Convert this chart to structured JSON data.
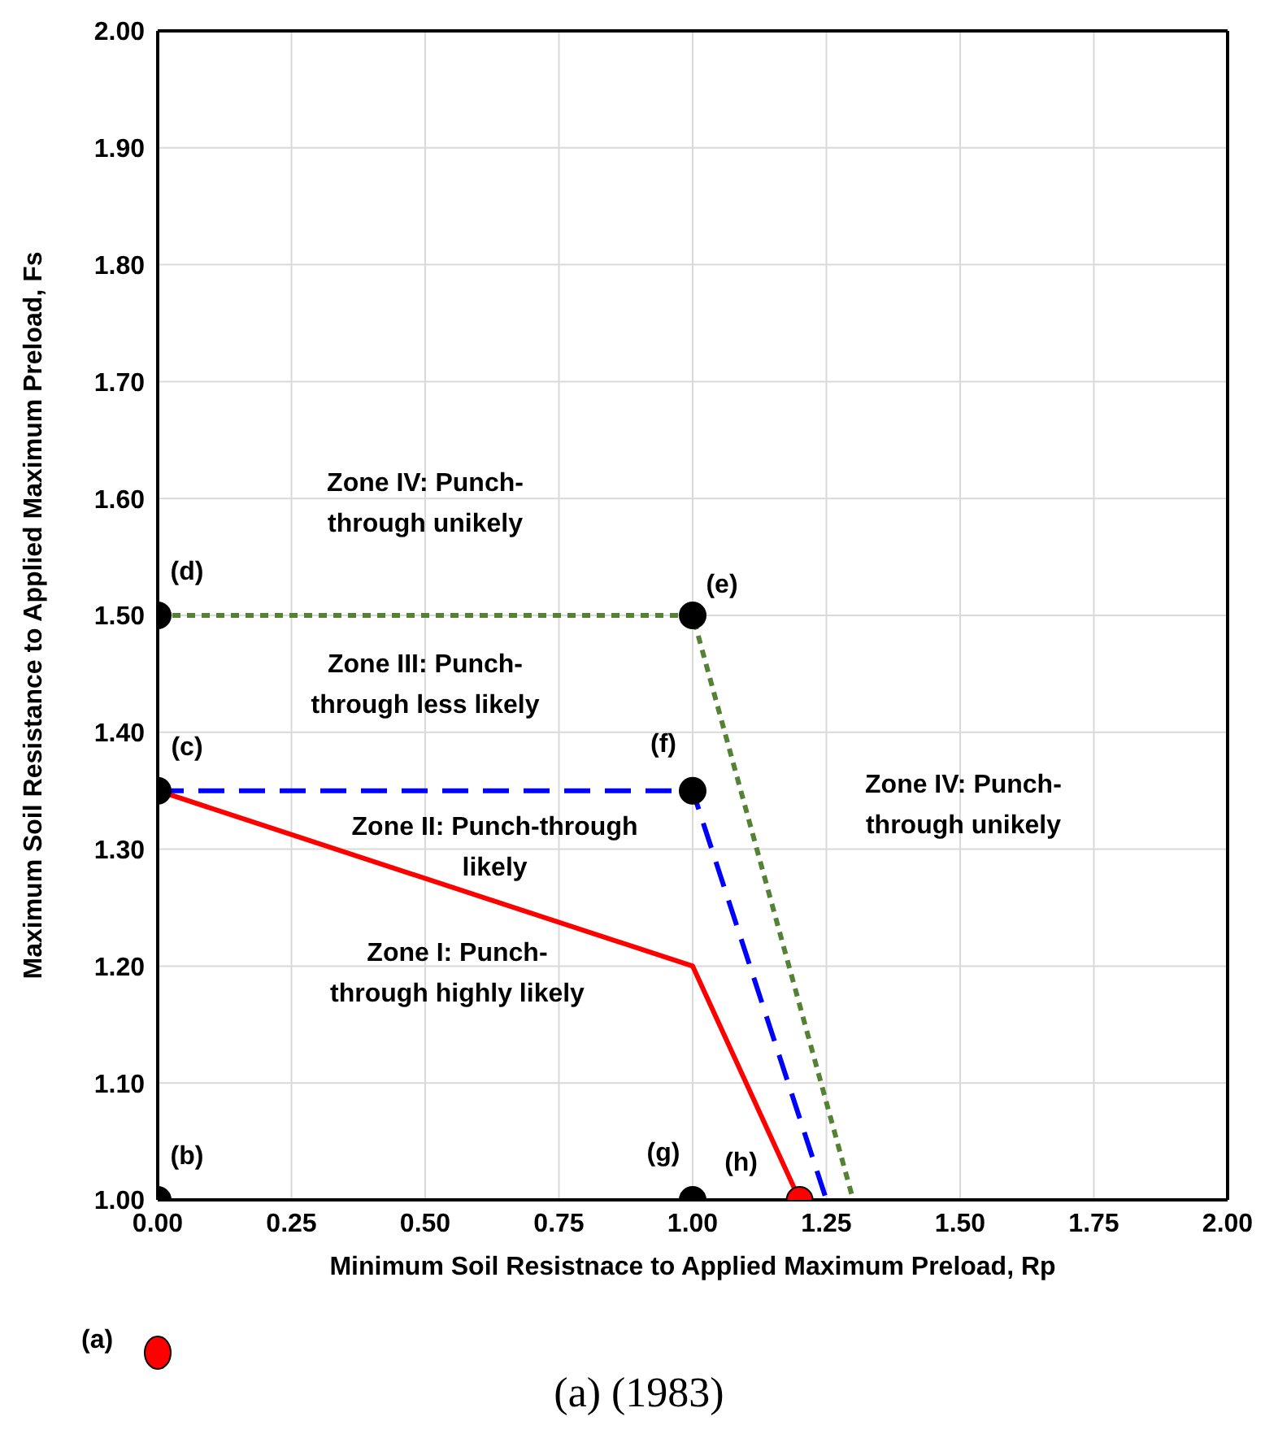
{
  "chart_data": {
    "type": "line",
    "xlabel": "Minimum Soil Resistnace to Applied Maximum Preload, Rp",
    "ylabel": "Maximum Soil Resistance to Applied Maximum Preload, Fs",
    "xlim": [
      0,
      2
    ],
    "ylim": [
      1,
      2
    ],
    "xticks": [
      {
        "value": 0,
        "label": "0.00"
      },
      {
        "value": 0.25,
        "label": "0.25"
      },
      {
        "value": 0.5,
        "label": "0.50"
      },
      {
        "value": 0.75,
        "label": "0.75"
      },
      {
        "value": 1,
        "label": "1.00"
      },
      {
        "value": 1.25,
        "label": "1.25"
      },
      {
        "value": 1.5,
        "label": "1.50"
      },
      {
        "value": 1.75,
        "label": "1.75"
      },
      {
        "value": 2,
        "label": "2.00"
      }
    ],
    "yticks": [
      {
        "value": 1,
        "label": "1.00"
      },
      {
        "value": 1.1,
        "label": "1.10"
      },
      {
        "value": 1.2,
        "label": "1.20"
      },
      {
        "value": 1.3,
        "label": "1.30"
      },
      {
        "value": 1.4,
        "label": "1.40"
      },
      {
        "value": 1.5,
        "label": "1.50"
      },
      {
        "value": 1.6,
        "label": "1.60"
      },
      {
        "value": 1.7,
        "label": "1.70"
      },
      {
        "value": 1.8,
        "label": "1.80"
      },
      {
        "value": 1.9,
        "label": "1.90"
      },
      {
        "value": 2,
        "label": "2.00"
      }
    ],
    "grid": true,
    "series": [
      {
        "color": "#ff0000",
        "line_style": "solid",
        "marker": "none",
        "x": [
          0,
          1,
          1.2
        ],
        "values": [
          1.35,
          1.2,
          1.0
        ]
      },
      {
        "color": "#0000ff",
        "line_style": "dashed",
        "marker": "none",
        "x": [
          0,
          1,
          1.25
        ],
        "values": [
          1.35,
          1.35,
          1.0
        ]
      },
      {
        "color": "#548235",
        "line_style": "dotted",
        "marker": "none",
        "x": [
          0,
          1,
          1.3
        ],
        "values": [
          1.5,
          1.5,
          1.0
        ]
      },
      {
        "type": "scatter",
        "color": "#000000",
        "marker": "circle",
        "x": [
          0,
          1,
          0,
          1,
          0,
          1
        ],
        "values": [
          1.5,
          1.5,
          1.35,
          1.35,
          1.0,
          1.0
        ],
        "value_labels": [
          "(d)",
          "(e)",
          "(c)",
          "(f)",
          "(b)",
          "(g)"
        ]
      },
      {
        "type": "scatter",
        "color": "#ff0000",
        "marker": "circle",
        "x": [
          1.2
        ],
        "values": [
          1.0
        ],
        "value_labels": [
          "(h)"
        ]
      }
    ],
    "annotations": [
      "Zone IV: Punch-\nthrough unikely",
      "Zone III: Punch-\nthrough less likely",
      "Zone II: Punch-through\nlikely",
      "Zone I: Punch-\nthrough highly likely",
      "Zone IV: Punch-\nthrough unikely",
      "(a)",
      "(a) (1983)"
    ]
  }
}
